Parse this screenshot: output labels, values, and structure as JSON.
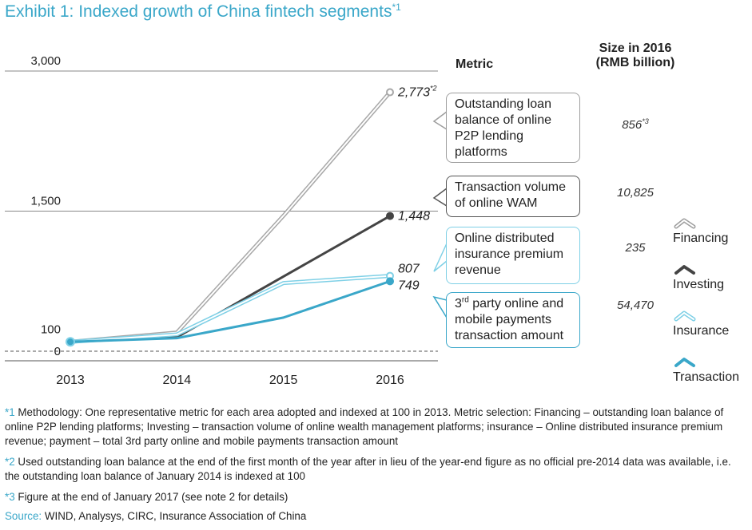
{
  "title": {
    "text": "Exhibit 1: Indexed growth of China fintech segments",
    "note_mark": "*1"
  },
  "table_header": {
    "metric": "Metric",
    "size_line1": "Size in 2016",
    "size_line2": "(RMB billion)"
  },
  "metrics": [
    {
      "key": "financing",
      "text": "Outstanding loan balance of online P2P lending platforms",
      "size": "856",
      "size_note": "*3",
      "border": "#9e9e9e"
    },
    {
      "key": "investing",
      "text": "Transaction volume of online WAM",
      "size": "10,825",
      "size_note": "",
      "border": "#555555"
    },
    {
      "key": "insurance",
      "text": "Online distributed insurance premium revenue",
      "size": "235",
      "size_note": "",
      "border": "#7fd0e6"
    },
    {
      "key": "transaction",
      "text_prefix": "3",
      "text_sup": "rd",
      "text": " party online and mobile payments transaction amount",
      "size": "54,470",
      "size_note": "",
      "border": "#3aa7c9"
    }
  ],
  "legend": [
    {
      "label": "Financing",
      "color": "#9e9e9e",
      "style": "double"
    },
    {
      "label": "Investing",
      "color": "#444444",
      "style": "solid"
    },
    {
      "label": "Insurance",
      "color": "#7fd0e6",
      "style": "double"
    },
    {
      "label": "Transaction",
      "color": "#3aa7c9",
      "style": "solid"
    }
  ],
  "chart_data": {
    "type": "line",
    "x": [
      "2013",
      "2014",
      "2015",
      "2016"
    ],
    "ylim": [
      0,
      3000
    ],
    "yticks": [
      "0",
      "100",
      "1,500",
      "3,000"
    ],
    "ytick_values": [
      0,
      100,
      1500,
      3000
    ],
    "series": [
      {
        "name": "Financing",
        "values": [
          100,
          200,
          1450,
          2773
        ],
        "end_label": "2,773",
        "end_note": "*2",
        "color": "#a8a8a8"
      },
      {
        "name": "Investing",
        "values": [
          100,
          150,
          800,
          1448
        ],
        "end_label": "1,448",
        "end_note": "",
        "color": "#444444"
      },
      {
        "name": "Insurance",
        "values": [
          100,
          180,
          730,
          807
        ],
        "end_label": "807",
        "end_note": "",
        "color": "#7fd0e6"
      },
      {
        "name": "Transaction",
        "values": [
          100,
          140,
          360,
          749
        ],
        "end_label": "749",
        "end_note": "",
        "color": "#3aa7c9"
      }
    ]
  },
  "footnotes": [
    {
      "mark": "*1",
      "text": " Methodology: One representative metric for each area adopted and indexed at 100 in 2013. Metric selection: Financing – outstanding loan balance of online P2P lending platforms; Investing – transaction volume of online wealth management platforms; insurance – Online distributed insurance premium revenue; payment – total 3rd party online and mobile payments transaction amount"
    },
    {
      "mark": "*2",
      "text": " Used outstanding loan balance at the end of the first month of the year after in lieu of the year-end figure as no official pre-2014 data was available, i.e. the outstanding loan balance of January 2014 is indexed at 100"
    },
    {
      "mark": "*3",
      "text": " Figure at the end of January 2017 (see note 2 for details)"
    },
    {
      "mark": "Source:",
      "text": " WIND, Analysys, CIRC, Insurance Association of China"
    }
  ]
}
